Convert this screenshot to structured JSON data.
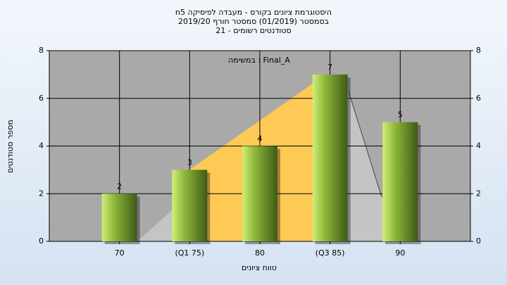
{
  "chart_data": {
    "type": "bar",
    "title": "היסטוגרמת ציונים בקורס - מעבדה לפיסיקה 5ח",
    "subtitle": "בסמסטר  (01/2019)  סמסטר חורף 2019/20",
    "subtitle2": "סטודנטים רשומים - 21",
    "annotation": "Final_A : במשימה",
    "xlabel": "טווח ציונים",
    "ylabel": "מספר סטודנטים",
    "categories": [
      "70",
      "(Q1 75)",
      "80",
      "(Q3 85)",
      "90"
    ],
    "values": [
      2,
      3,
      4,
      7,
      5
    ],
    "color": "#8db83a",
    "ylim": [
      0,
      8
    ],
    "yticks": [
      0,
      2,
      4,
      6,
      8
    ],
    "y2lim": [
      0,
      8
    ],
    "y2ticks": [
      0,
      2,
      4,
      6,
      8
    ],
    "grid": true
  }
}
